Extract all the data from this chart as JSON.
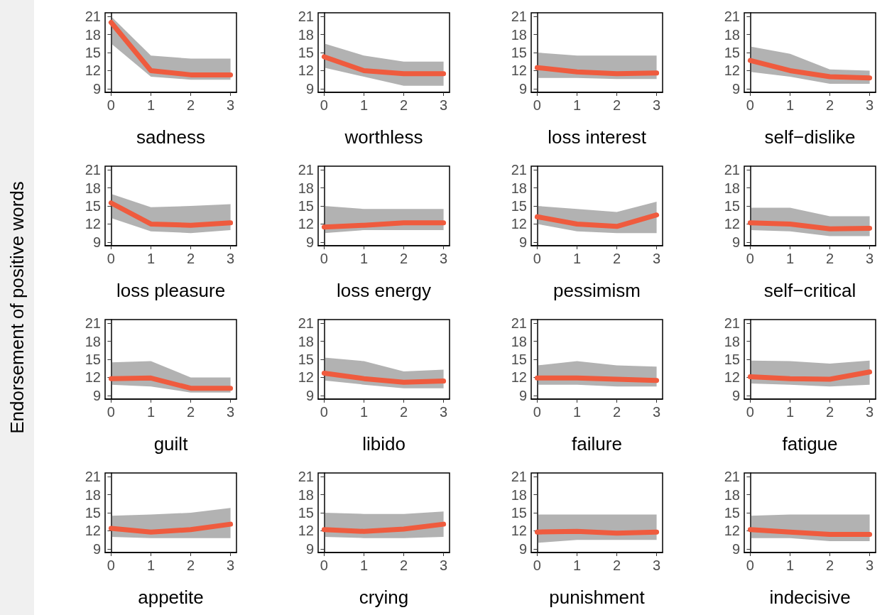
{
  "chart_data": [
    {
      "type": "line",
      "ylabel": "Endorsement of positive words",
      "xlabel": "sadness",
      "x": [
        0,
        1,
        2,
        3
      ],
      "series": [
        {
          "color": "#ef5b3e",
          "values": [
            20,
            12,
            11.3,
            11.3
          ],
          "lower": [
            16.5,
            11,
            10.5,
            10.5
          ],
          "upper": [
            21,
            14.5,
            14,
            14
          ]
        }
      ],
      "xlim": [
        -0.15,
        3.15
      ],
      "ylim": [
        8.4,
        21.6
      ],
      "xticks": [
        0,
        1,
        2,
        3
      ],
      "yticks": [
        9,
        12,
        15,
        18,
        21
      ]
    },
    {
      "type": "line",
      "xlabel": "worthless",
      "x": [
        0,
        1,
        2,
        3
      ],
      "series": [
        {
          "color": "#ef5b3e",
          "values": [
            14.3,
            12,
            11.5,
            11.5
          ],
          "lower": [
            12.5,
            11,
            9.5,
            9.5
          ],
          "upper": [
            16.5,
            14.5,
            13.5,
            13.5
          ]
        }
      ],
      "xlim": [
        -0.15,
        3.15
      ],
      "ylim": [
        8.4,
        21.6
      ],
      "xticks": [
        0,
        1,
        2,
        3
      ],
      "yticks": [
        9,
        12,
        15,
        18,
        21
      ]
    },
    {
      "type": "line",
      "xlabel": "loss interest",
      "x": [
        0,
        1,
        2,
        3
      ],
      "series": [
        {
          "color": "#ef5b3e",
          "values": [
            12.5,
            11.8,
            11.5,
            11.6
          ],
          "lower": [
            10.8,
            10.8,
            10.6,
            10.6
          ],
          "upper": [
            15,
            14.5,
            14.5,
            14.5
          ]
        }
      ],
      "xlim": [
        -0.15,
        3.15
      ],
      "ylim": [
        8.4,
        21.6
      ],
      "xticks": [
        0,
        1,
        2,
        3
      ],
      "yticks": [
        9,
        12,
        15,
        18,
        21
      ]
    },
    {
      "type": "line",
      "xlabel": "self−dislike",
      "x": [
        0,
        1,
        2,
        3
      ],
      "series": [
        {
          "color": "#ef5b3e",
          "values": [
            13.7,
            12,
            11,
            10.8
          ],
          "lower": [
            11.8,
            11,
            9.8,
            9.8
          ],
          "upper": [
            16,
            14.8,
            12.2,
            12
          ]
        }
      ],
      "xlim": [
        -0.15,
        3.15
      ],
      "ylim": [
        8.4,
        21.6
      ],
      "xticks": [
        0,
        1,
        2,
        3
      ],
      "yticks": [
        9,
        12,
        15,
        18,
        21
      ]
    },
    {
      "type": "line",
      "xlabel": "loss pleasure",
      "x": [
        0,
        1,
        2,
        3
      ],
      "series": [
        {
          "color": "#ef5b3e",
          "values": [
            15.5,
            12,
            11.8,
            12.2
          ],
          "lower": [
            13,
            10.8,
            10.5,
            11
          ],
          "upper": [
            17,
            14.8,
            15,
            15.3
          ]
        }
      ],
      "xlim": [
        -0.15,
        3.15
      ],
      "ylim": [
        8.4,
        21.6
      ],
      "xticks": [
        0,
        1,
        2,
        3
      ],
      "yticks": [
        9,
        12,
        15,
        18,
        21
      ]
    },
    {
      "type": "line",
      "xlabel": "loss energy",
      "x": [
        0,
        1,
        2,
        3
      ],
      "series": [
        {
          "color": "#ef5b3e",
          "values": [
            11.5,
            11.8,
            12.2,
            12.2
          ],
          "lower": [
            10.5,
            11,
            11,
            11
          ],
          "upper": [
            15,
            14.5,
            14.5,
            14.5
          ]
        }
      ],
      "xlim": [
        -0.15,
        3.15
      ],
      "ylim": [
        8.4,
        21.6
      ],
      "xticks": [
        0,
        1,
        2,
        3
      ],
      "yticks": [
        9,
        12,
        15,
        18,
        21
      ]
    },
    {
      "type": "line",
      "xlabel": "pessimism",
      "x": [
        0,
        1,
        2,
        3
      ],
      "series": [
        {
          "color": "#ef5b3e",
          "values": [
            13.2,
            12,
            11.6,
            13.5
          ],
          "lower": [
            12,
            10.8,
            10.5,
            10.5
          ],
          "upper": [
            15,
            14.5,
            14,
            15.7
          ]
        }
      ],
      "xlim": [
        -0.15,
        3.15
      ],
      "ylim": [
        8.4,
        21.6
      ],
      "xticks": [
        0,
        1,
        2,
        3
      ],
      "yticks": [
        9,
        12,
        15,
        18,
        21
      ]
    },
    {
      "type": "line",
      "xlabel": "self−critical",
      "x": [
        0,
        1,
        2,
        3
      ],
      "series": [
        {
          "color": "#ef5b3e",
          "values": [
            12.2,
            12,
            11.2,
            11.3
          ],
          "lower": [
            11,
            10.8,
            10,
            10
          ],
          "upper": [
            14.7,
            14.7,
            13.3,
            13.3
          ]
        }
      ],
      "xlim": [
        -0.15,
        3.15
      ],
      "ylim": [
        8.4,
        21.6
      ],
      "xticks": [
        0,
        1,
        2,
        3
      ],
      "yticks": [
        9,
        12,
        15,
        18,
        21
      ]
    },
    {
      "type": "line",
      "xlabel": "guilt",
      "x": [
        0,
        1,
        2,
        3
      ],
      "series": [
        {
          "color": "#ef5b3e",
          "values": [
            11.8,
            11.9,
            10.2,
            10.2
          ],
          "lower": [
            10.8,
            10.5,
            9.5,
            9.5
          ],
          "upper": [
            14.5,
            14.7,
            12,
            12
          ]
        }
      ],
      "xlim": [
        -0.15,
        3.15
      ],
      "ylim": [
        8.4,
        21.6
      ],
      "xticks": [
        0,
        1,
        2,
        3
      ],
      "yticks": [
        9,
        12,
        15,
        18,
        21
      ]
    },
    {
      "type": "line",
      "xlabel": "libido",
      "x": [
        0,
        1,
        2,
        3
      ],
      "series": [
        {
          "color": "#ef5b3e",
          "values": [
            12.7,
            11.8,
            11.2,
            11.4
          ],
          "lower": [
            11.5,
            10.8,
            10.2,
            10.2
          ],
          "upper": [
            15.3,
            14.7,
            13,
            13.3
          ]
        }
      ],
      "xlim": [
        -0.15,
        3.15
      ],
      "ylim": [
        8.4,
        21.6
      ],
      "xticks": [
        0,
        1,
        2,
        3
      ],
      "yticks": [
        9,
        12,
        15,
        18,
        21
      ]
    },
    {
      "type": "line",
      "xlabel": "failure",
      "x": [
        0,
        1,
        2,
        3
      ],
      "series": [
        {
          "color": "#ef5b3e",
          "values": [
            11.9,
            11.9,
            11.7,
            11.5
          ],
          "lower": [
            10.8,
            10.8,
            10.5,
            10.5
          ],
          "upper": [
            14,
            14.7,
            14,
            13.8
          ]
        }
      ],
      "xlim": [
        -0.15,
        3.15
      ],
      "ylim": [
        8.4,
        21.6
      ],
      "xticks": [
        0,
        1,
        2,
        3
      ],
      "yticks": [
        9,
        12,
        15,
        18,
        21
      ]
    },
    {
      "type": "line",
      "xlabel": "fatigue",
      "x": [
        0,
        1,
        2,
        3
      ],
      "series": [
        {
          "color": "#ef5b3e",
          "values": [
            12.1,
            11.8,
            11.7,
            12.9
          ],
          "lower": [
            11,
            10.8,
            10.5,
            10.8
          ],
          "upper": [
            14.8,
            14.7,
            14.3,
            14.8
          ]
        }
      ],
      "xlim": [
        -0.15,
        3.15
      ],
      "ylim": [
        8.4,
        21.6
      ],
      "xticks": [
        0,
        1,
        2,
        3
      ],
      "yticks": [
        9,
        12,
        15,
        18,
        21
      ]
    },
    {
      "type": "line",
      "xlabel": "appetite",
      "x": [
        0,
        1,
        2,
        3
      ],
      "series": [
        {
          "color": "#ef5b3e",
          "values": [
            12.4,
            11.8,
            12.2,
            13.1
          ],
          "lower": [
            11,
            10.8,
            10.8,
            10.8
          ],
          "upper": [
            14.5,
            14.7,
            15,
            15.8
          ]
        }
      ],
      "xlim": [
        -0.15,
        3.15
      ],
      "ylim": [
        8.4,
        21.6
      ],
      "xticks": [
        0,
        1,
        2,
        3
      ],
      "yticks": [
        9,
        12,
        15,
        18,
        21
      ]
    },
    {
      "type": "line",
      "xlabel": "crying",
      "x": [
        0,
        1,
        2,
        3
      ],
      "series": [
        {
          "color": "#ef5b3e",
          "values": [
            12.2,
            11.9,
            12.3,
            13.1
          ],
          "lower": [
            11,
            10.8,
            10.8,
            11
          ],
          "upper": [
            15,
            14.8,
            14.8,
            15.2
          ]
        }
      ],
      "xlim": [
        -0.15,
        3.15
      ],
      "ylim": [
        8.4,
        21.6
      ],
      "xticks": [
        0,
        1,
        2,
        3
      ],
      "yticks": [
        9,
        12,
        15,
        18,
        21
      ]
    },
    {
      "type": "line",
      "xlabel": "punishment",
      "x": [
        0,
        1,
        2,
        3
      ],
      "series": [
        {
          "color": "#ef5b3e",
          "values": [
            11.8,
            11.9,
            11.6,
            11.8
          ],
          "lower": [
            10,
            10.5,
            10.5,
            10.5
          ],
          "upper": [
            14.7,
            14.7,
            14.7,
            14.7
          ]
        }
      ],
      "xlim": [
        -0.15,
        3.15
      ],
      "ylim": [
        8.4,
        21.6
      ],
      "xticks": [
        0,
        1,
        2,
        3
      ],
      "yticks": [
        9,
        12,
        15,
        18,
        21
      ]
    },
    {
      "type": "line",
      "xlabel": "indecisive",
      "x": [
        0,
        1,
        2,
        3
      ],
      "series": [
        {
          "color": "#ef5b3e",
          "values": [
            12.2,
            11.8,
            11.4,
            11.4
          ],
          "lower": [
            10.8,
            10.8,
            10.3,
            10.3
          ],
          "upper": [
            14.5,
            14.7,
            14.7,
            14.7
          ]
        }
      ],
      "xlim": [
        -0.15,
        3.15
      ],
      "ylim": [
        8.4,
        21.6
      ],
      "xticks": [
        0,
        1,
        2,
        3
      ],
      "yticks": [
        9,
        12,
        15,
        18,
        21
      ]
    }
  ]
}
